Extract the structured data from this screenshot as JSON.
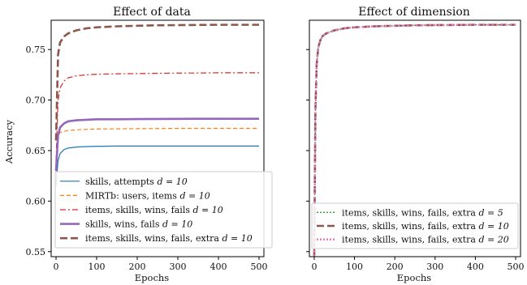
{
  "chart_data": [
    {
      "type": "line",
      "title": "Effect of data",
      "xlabel": "Epochs",
      "ylabel": "Accuracy",
      "xlim": [
        -12,
        512
      ],
      "ylim": [
        0.545,
        0.779
      ],
      "xticks": [
        "0",
        "100",
        "200",
        "300",
        "400",
        "500"
      ],
      "xtick_values": [
        0,
        100,
        200,
        300,
        400,
        500
      ],
      "yticks": [
        "0.55",
        "0.60",
        "0.65",
        "0.70",
        "0.75"
      ],
      "ytick_values": [
        0.55,
        0.6,
        0.65,
        0.7,
        0.75
      ],
      "show_ytick_labels": true,
      "legend_position": "lower-left",
      "x": [
        0,
        5,
        10,
        20,
        30,
        50,
        75,
        100,
        150,
        200,
        250,
        300,
        350,
        400,
        450,
        500
      ],
      "series": [
        {
          "name": "skills, attempts d = 10",
          "legend_text": "skills, attempts",
          "legend_math": "d = 10",
          "color": "#1f77b4",
          "dash": "solid",
          "width": 1.2,
          "values": [
            0.615,
            0.64,
            0.647,
            0.651,
            0.6525,
            0.6535,
            0.654,
            0.6542,
            0.6545,
            0.6545,
            0.6545,
            0.6545,
            0.6545,
            0.6545,
            0.6545,
            0.6545
          ]
        },
        {
          "name": "MIRTb: users, items d = 10",
          "legend_text": "MIRTb: users, items",
          "legend_math": "d = 10",
          "color": "#ff7f0e",
          "dash": "dashed",
          "width": 1.2,
          "values": [
            0.628,
            0.664,
            0.668,
            0.669,
            0.67,
            0.6705,
            0.671,
            0.6713,
            0.6715,
            0.6717,
            0.6718,
            0.672,
            0.672,
            0.672,
            0.672,
            0.672
          ]
        },
        {
          "name": "items, skills, wins, fails d = 10",
          "legend_text": "items, skills, wins, fails",
          "legend_math": "d = 10",
          "color": "#d62728",
          "dash": "dashdot",
          "width": 1.2,
          "values": [
            0.64,
            0.7,
            0.712,
            0.719,
            0.722,
            0.724,
            0.725,
            0.7255,
            0.726,
            0.7262,
            0.7265,
            0.7267,
            0.7268,
            0.727,
            0.727,
            0.727
          ]
        },
        {
          "name": "skills, wins, fails d = 10",
          "legend_text": "skills, wins, fails",
          "legend_math": "d = 10",
          "color": "#9467bd",
          "dash": "solid",
          "width": 2.6,
          "values": [
            0.63,
            0.665,
            0.673,
            0.677,
            0.679,
            0.68,
            0.6805,
            0.681,
            0.681,
            0.6812,
            0.6813,
            0.6814,
            0.6815,
            0.6815,
            0.6815,
            0.6815
          ]
        },
        {
          "name": "items, skills, wins, fails, extra d = 10",
          "legend_text": "items, skills, wins, fails, extra",
          "legend_math": "d = 10",
          "color": "#8c564b",
          "dash": "bigdash",
          "width": 2.6,
          "values": [
            0.66,
            0.745,
            0.757,
            0.763,
            0.766,
            0.769,
            0.771,
            0.772,
            0.773,
            0.7735,
            0.774,
            0.7742,
            0.7743,
            0.7745,
            0.7745,
            0.7745
          ]
        }
      ]
    },
    {
      "type": "line",
      "title": "Effect of dimension",
      "xlabel": "Epochs",
      "ylabel": "",
      "xlim": [
        -12,
        512
      ],
      "ylim": [
        0.545,
        0.779
      ],
      "xticks": [
        "0",
        "100",
        "200",
        "300",
        "400",
        "500"
      ],
      "xtick_values": [
        0,
        100,
        200,
        300,
        400,
        500
      ],
      "yticks": [],
      "ytick_values": [
        0.55,
        0.6,
        0.65,
        0.7,
        0.75
      ],
      "show_ytick_labels": false,
      "legend_position": "lower-right",
      "x": [
        0,
        3,
        6,
        10,
        15,
        20,
        30,
        50,
        75,
        100,
        150,
        200,
        250,
        300,
        350,
        400,
        450,
        500
      ],
      "series": [
        {
          "name": "items, skills, wins, fails, extra d = 5",
          "legend_text": "items, skills, wins, fails, extra",
          "legend_math": "d = 5",
          "color": "#2ca02c",
          "dash": "dotted",
          "width": 1.3,
          "values": [
            0.545,
            0.69,
            0.735,
            0.752,
            0.759,
            0.763,
            0.766,
            0.769,
            0.771,
            0.772,
            0.773,
            0.7735,
            0.774,
            0.7742,
            0.7743,
            0.7745,
            0.7745,
            0.7745
          ]
        },
        {
          "name": "items, skills, wins, fails, extra d = 10",
          "legend_text": "items, skills, wins, fails, extra",
          "legend_math": "d = 10",
          "color": "#8c564b",
          "dash": "bigdash",
          "width": 2.6,
          "values": [
            0.545,
            0.69,
            0.735,
            0.752,
            0.759,
            0.763,
            0.766,
            0.769,
            0.771,
            0.772,
            0.773,
            0.7735,
            0.774,
            0.7742,
            0.7743,
            0.7745,
            0.7745,
            0.7745
          ]
        },
        {
          "name": "items, skills, wins, fails, extra d = 20",
          "legend_text": "items, skills, wins, fails, extra",
          "legend_math": "d = 20",
          "color": "#e377c2",
          "dash": "dotted",
          "width": 2.4,
          "values": [
            0.545,
            0.69,
            0.735,
            0.752,
            0.759,
            0.763,
            0.766,
            0.769,
            0.771,
            0.772,
            0.773,
            0.7735,
            0.774,
            0.7742,
            0.7743,
            0.7745,
            0.7745,
            0.7745
          ]
        }
      ]
    }
  ]
}
